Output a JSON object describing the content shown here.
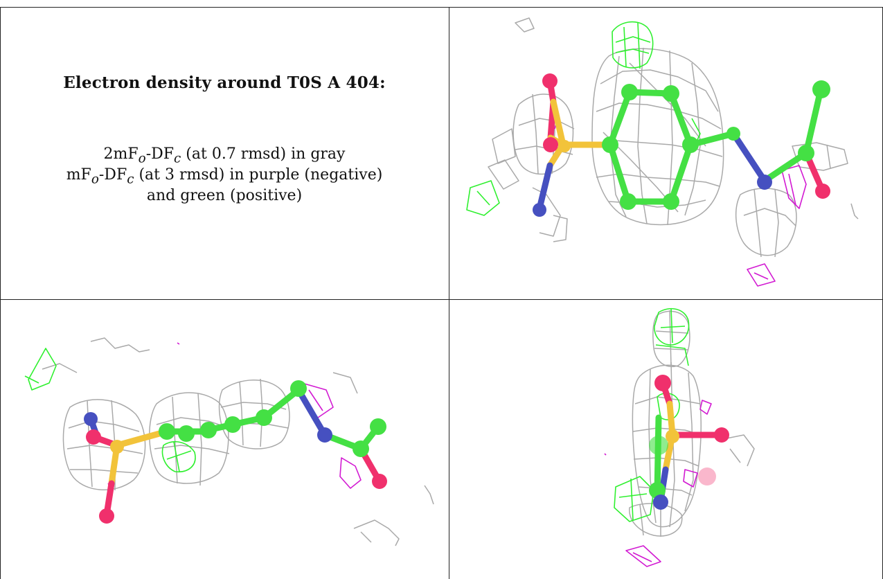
{
  "caption": {
    "title": "Electron density around T0S A 404:",
    "line1": {
      "a": "2mF",
      "a_sub": "o",
      "b": "-DF",
      "b_sub": "c",
      "rest": " (at 0.7 rmsd) in gray"
    },
    "line2": {
      "a": "mF",
      "a_sub": "o",
      "b": "-DF",
      "b_sub": "c",
      "rest": " (at 3 rmsd) in purple (negative)"
    },
    "line3": "and green (positive)"
  },
  "colors": {
    "carbon": "#44e044",
    "oxygen": "#f0306c",
    "nitrogen": "#4650c0",
    "sulfur": "#f2c33a",
    "mesh_gray": "#a9a9a9",
    "mesh_green": "#2ff02f",
    "mesh_purple": "#d21ad2"
  }
}
